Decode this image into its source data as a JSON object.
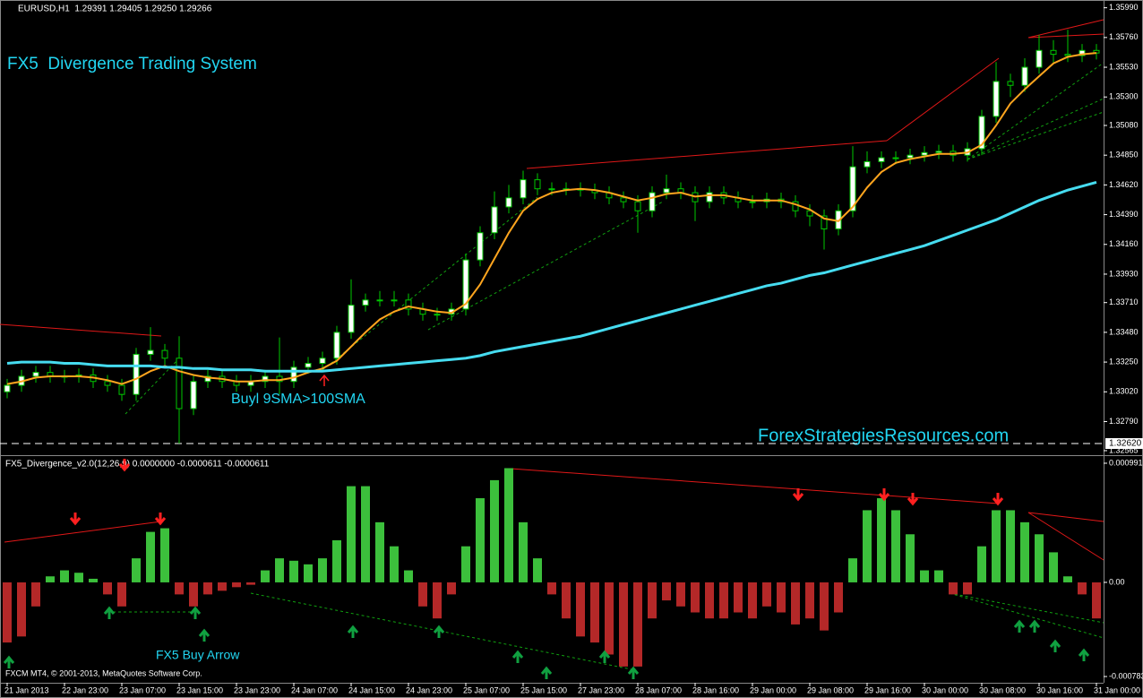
{
  "chart_data": [
    {
      "type": "candlestick",
      "header": "EURUSD,H1  1.29391 1.29405 1.29250 1.29266",
      "title": "FX5  Divergence Trading System",
      "annotations": [
        "Buyl 9SMA>100SMA",
        "ForexStrategiesResources.com"
      ],
      "ylim": [
        1.3253,
        1.3605
      ],
      "yticks": [
        {
          "value": 1.3599,
          "label": "1.35990"
        },
        {
          "value": 1.3576,
          "label": "1.35760"
        },
        {
          "value": 1.3553,
          "label": "1.35530"
        },
        {
          "value": 1.353,
          "label": "1.35300"
        },
        {
          "value": 1.3508,
          "label": "1.35080"
        },
        {
          "value": 1.3485,
          "label": "1.34850"
        },
        {
          "value": 1.3462,
          "label": "1.34620"
        },
        {
          "value": 1.3439,
          "label": "1.34390"
        },
        {
          "value": 1.3416,
          "label": "1.34160"
        },
        {
          "value": 1.3393,
          "label": "1.33930"
        },
        {
          "value": 1.3371,
          "label": "1.33710"
        },
        {
          "value": 1.3348,
          "label": "1.33480"
        },
        {
          "value": 1.3325,
          "label": "1.33250"
        },
        {
          "value": 1.3302,
          "label": "1.33020"
        },
        {
          "value": 1.3279,
          "label": "1.32790"
        },
        {
          "value": 1.32565,
          "label": "1.32565"
        }
      ],
      "hline": {
        "value": 1.3262,
        "label": "1.32620"
      },
      "up_color": "#ffffff",
      "down_color": "#000000",
      "wick_color": "#00c800",
      "open": [
        1.3302,
        1.3307,
        1.3314,
        1.3317,
        1.3314,
        1.3314,
        1.3315,
        1.331,
        1.3307,
        1.33,
        1.3331,
        1.3334,
        1.3328,
        1.3289,
        1.331,
        1.3314,
        1.331,
        1.3307,
        1.331,
        1.3314,
        1.331,
        1.3321,
        1.3324,
        1.3328,
        1.3348,
        1.3369,
        1.3373,
        1.3373,
        1.3373,
        1.3366,
        1.3362,
        1.3362,
        1.3366,
        1.3404,
        1.3425,
        1.3445,
        1.3452,
        1.3466,
        1.3459,
        1.3459,
        1.3459,
        1.3458,
        1.3456,
        1.3452,
        1.3449,
        1.3442,
        1.3456,
        1.3459,
        1.3456,
        1.3449,
        1.3456,
        1.3452,
        1.3449,
        1.3449,
        1.3451,
        1.3449,
        1.3442,
        1.3438,
        1.3428,
        1.3442,
        1.3476,
        1.348,
        1.3483,
        1.3483,
        1.3485,
        1.3487,
        1.3488,
        1.3485,
        1.349,
        1.3515,
        1.3542,
        1.3539,
        1.3553,
        1.3566,
        1.3563,
        1.3562,
        1.3566
      ],
      "high": [
        1.3312,
        1.3319,
        1.3322,
        1.3322,
        1.3319,
        1.332,
        1.332,
        1.3315,
        1.3312,
        1.3336,
        1.3352,
        1.3339,
        1.3345,
        1.3315,
        1.3319,
        1.3319,
        1.3315,
        1.3315,
        1.3319,
        1.3344,
        1.3326,
        1.3329,
        1.3333,
        1.3353,
        1.3389,
        1.3378,
        1.338,
        1.338,
        1.3378,
        1.3371,
        1.3367,
        1.3371,
        1.3409,
        1.343,
        1.3457,
        1.3462,
        1.3473,
        1.3471,
        1.3464,
        1.3464,
        1.3464,
        1.3463,
        1.3461,
        1.3457,
        1.3454,
        1.3461,
        1.347,
        1.3464,
        1.3461,
        1.3461,
        1.3461,
        1.3457,
        1.3454,
        1.3456,
        1.3456,
        1.3454,
        1.3447,
        1.3443,
        1.3447,
        1.3492,
        1.3488,
        1.3488,
        1.3488,
        1.349,
        1.3492,
        1.3493,
        1.3493,
        1.3495,
        1.352,
        1.3557,
        1.3548,
        1.356,
        1.3578,
        1.3574,
        1.3582,
        1.3571,
        1.3571
      ],
      "low": [
        1.3297,
        1.3302,
        1.3309,
        1.3309,
        1.3309,
        1.3309,
        1.3305,
        1.3302,
        1.3295,
        1.3295,
        1.3326,
        1.3323,
        1.3262,
        1.3284,
        1.3305,
        1.3305,
        1.3302,
        1.3302,
        1.3305,
        1.33,
        1.3305,
        1.3316,
        1.3319,
        1.3323,
        1.3343,
        1.3364,
        1.3368,
        1.3368,
        1.3361,
        1.3357,
        1.3357,
        1.3357,
        1.3361,
        1.3399,
        1.342,
        1.344,
        1.3447,
        1.3454,
        1.3454,
        1.3454,
        1.3453,
        1.3451,
        1.3447,
        1.3444,
        1.3425,
        1.3437,
        1.3451,
        1.3451,
        1.3434,
        1.3444,
        1.3447,
        1.3444,
        1.3444,
        1.3444,
        1.3444,
        1.3437,
        1.343,
        1.3412,
        1.3423,
        1.3437,
        1.3471,
        1.3475,
        1.3478,
        1.3478,
        1.348,
        1.3482,
        1.348,
        1.348,
        1.3485,
        1.351,
        1.353,
        1.3534,
        1.3548,
        1.3556,
        1.3557,
        1.3557,
        1.3559
      ],
      "close": [
        1.3307,
        1.3314,
        1.3317,
        1.3314,
        1.3314,
        1.3315,
        1.331,
        1.3307,
        1.33,
        1.3331,
        1.3334,
        1.3328,
        1.3289,
        1.331,
        1.3314,
        1.331,
        1.3307,
        1.331,
        1.3314,
        1.331,
        1.3321,
        1.3324,
        1.3328,
        1.3348,
        1.3369,
        1.3373,
        1.3373,
        1.3373,
        1.3366,
        1.3362,
        1.3362,
        1.3366,
        1.3404,
        1.3425,
        1.3445,
        1.3452,
        1.3466,
        1.3459,
        1.3459,
        1.3459,
        1.3458,
        1.3456,
        1.3452,
        1.3449,
        1.3442,
        1.3456,
        1.3459,
        1.3456,
        1.3449,
        1.3456,
        1.3452,
        1.3449,
        1.3449,
        1.3451,
        1.3449,
        1.3442,
        1.3438,
        1.3428,
        1.3442,
        1.3476,
        1.348,
        1.3483,
        1.3483,
        1.3485,
        1.3487,
        1.3488,
        1.3485,
        1.349,
        1.3515,
        1.3542,
        1.3539,
        1.3553,
        1.3566,
        1.3563,
        1.3562,
        1.3566,
        1.3564
      ],
      "lines": [
        {
          "color": "#ffa51e",
          "values": [
            1.3308,
            1.331,
            1.3313,
            1.3314,
            1.3314,
            1.3314,
            1.3313,
            1.3311,
            1.3308,
            1.3312,
            1.3318,
            1.3322,
            1.3318,
            1.3315,
            1.3313,
            1.3312,
            1.331,
            1.331,
            1.3311,
            1.3311,
            1.3313,
            1.3317,
            1.332,
            1.3326,
            1.3337,
            1.3348,
            1.3358,
            1.3364,
            1.3368,
            1.3366,
            1.3364,
            1.3363,
            1.337,
            1.3385,
            1.3405,
            1.3425,
            1.3442,
            1.3451,
            1.3456,
            1.3458,
            1.3459,
            1.3458,
            1.3456,
            1.3453,
            1.345,
            1.3452,
            1.3455,
            1.3456,
            1.3453,
            1.3454,
            1.3454,
            1.3452,
            1.345,
            1.345,
            1.345,
            1.3447,
            1.3443,
            1.3436,
            1.3434,
            1.3445,
            1.346,
            1.3472,
            1.3479,
            1.3482,
            1.3484,
            1.3486,
            1.3486,
            1.3487,
            1.3493,
            1.3508,
            1.3525,
            1.3536,
            1.3546,
            1.3556,
            1.3561,
            1.3563,
            1.3564
          ]
        },
        {
          "color": "#46dcf0",
          "values": [
            1.3324,
            1.3325,
            1.3325,
            1.3325,
            1.3324,
            1.3324,
            1.3323,
            1.3322,
            1.3322,
            1.3322,
            1.3322,
            1.3321,
            1.3321,
            1.332,
            1.332,
            1.3319,
            1.3319,
            1.3319,
            1.3318,
            1.3318,
            1.3318,
            1.3318,
            1.3318,
            1.3319,
            1.332,
            1.3321,
            1.3322,
            1.3323,
            1.3324,
            1.3325,
            1.3326,
            1.3327,
            1.3328,
            1.333,
            1.3333,
            1.3335,
            1.3337,
            1.3339,
            1.3341,
            1.3343,
            1.3345,
            1.3348,
            1.3351,
            1.3354,
            1.3357,
            1.336,
            1.3363,
            1.3366,
            1.3369,
            1.3372,
            1.3375,
            1.3378,
            1.3381,
            1.3384,
            1.3386,
            1.3389,
            1.3392,
            1.3394,
            1.3397,
            1.34,
            1.3403,
            1.3406,
            1.3409,
            1.3412,
            1.3415,
            1.3419,
            1.3423,
            1.3427,
            1.3431,
            1.3435,
            1.344,
            1.3445,
            1.345,
            1.3454,
            1.3458,
            1.3461,
            1.3464
          ]
        }
      ]
    },
    {
      "type": "bar",
      "title": "FX5_Divergence_v2.0(12,26,9) 0.0000000 -0.0000611 -0.0000611",
      "annotations": [
        "FX5 Buy Arrow"
      ],
      "ylim": [
        -0.000835,
        0.001043
      ],
      "yticks": [
        0.000991,
        {
          "value": 0,
          "label": "0.00"
        },
        -0.000783
      ],
      "positive_color": "#3cc03c",
      "negative_color": "#b42828",
      "categories": [
        "21 Jan 2013",
        null,
        null,
        null,
        "22 Jan 23:00",
        null,
        null,
        null,
        "23 Jan 07:00",
        null,
        null,
        null,
        "23 Jan 15:00",
        null,
        null,
        null,
        "23 Jan 23:00",
        null,
        null,
        null,
        "24 Jan 07:00",
        null,
        null,
        null,
        "24 Jan 15:00",
        null,
        null,
        null,
        "24 Jan 23:00",
        null,
        null,
        null,
        "25 Jan 07:00",
        null,
        null,
        null,
        "25 Jan 15:00",
        null,
        null,
        null,
        "27 Jan 23:00",
        null,
        null,
        null,
        "28 Jan 07:00",
        null,
        null,
        null,
        "28 Jan 16:00",
        null,
        null,
        null,
        "29 Jan 00:00",
        null,
        null,
        null,
        "29 Jan 08:00",
        null,
        null,
        null,
        "29 Jan 16:00",
        null,
        null,
        null,
        "30 Jan 00:00",
        null,
        null,
        null,
        "30 Jan 08:00",
        null,
        null,
        null,
        "30 Jan 16:00",
        null,
        null,
        null,
        "31 Jan 00:00"
      ],
      "values": [
        -0.0005,
        -0.00045,
        -0.0002,
        5e-05,
        0.0001,
        8e-05,
        3e-05,
        -0.0001,
        -0.0002,
        0.0002,
        0.00042,
        0.00045,
        -0.0001,
        -0.0002,
        -0.0001,
        -7e-05,
        -4e-05,
        -2e-05,
        0.0001,
        0.0002,
        0.00018,
        0.00015,
        0.0002,
        0.00035,
        0.0008,
        0.0008,
        0.0005,
        0.0003,
        0.0001,
        -0.0002,
        -0.0003,
        -0.0001,
        0.0003,
        0.0007,
        0.00085,
        0.00095,
        0.0005,
        0.0002,
        -0.0001,
        -0.0003,
        -0.00045,
        -0.0005,
        -0.0006,
        -0.0007,
        -0.0007,
        -0.0003,
        -0.00015,
        -0.0002,
        -0.00025,
        -0.0003,
        -0.0003,
        -0.00025,
        -0.0003,
        -0.0002,
        -0.00025,
        -0.00035,
        -0.0003,
        -0.0004,
        -0.00025,
        0.0002,
        0.0006,
        0.0007,
        0.0006,
        0.0004,
        0.0001,
        0.0001,
        -0.0001,
        -0.0001,
        0.0003,
        0.0006,
        0.0006,
        0.0005,
        0.0004,
        0.00025,
        5e-05,
        -0.0001,
        -0.0003
      ]
    }
  ],
  "footer": "FXCM MT4, © 2001-2013, MetaQuotes Software Corp."
}
